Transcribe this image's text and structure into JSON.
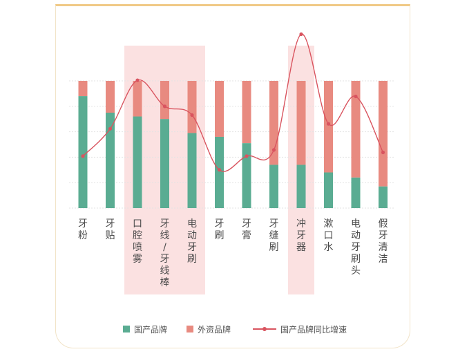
{
  "colors": {
    "domestic": "#5aac92",
    "foreign": "#e88a80",
    "growth": "#d9545f",
    "highlight": "#fbe1e1",
    "grid": "#e3e3e3",
    "label": "#4a4a4a"
  },
  "legend": {
    "domestic": "国产品牌",
    "foreign": "外资品牌",
    "growth": "国产品牌同比增速"
  },
  "chart_data": {
    "type": "bar",
    "stacked": true,
    "percent_stacked": true,
    "categories": [
      "牙粉",
      "牙贴",
      "口腔喷雾",
      "牙线/牙线棒",
      "电动牙刷",
      "牙刷",
      "牙膏",
      "牙缝刷",
      "冲牙器",
      "漱口水",
      "电动牙刷头",
      "假牙清洁"
    ],
    "category_lines": [
      [
        "牙",
        "粉"
      ],
      [
        "牙",
        "贴"
      ],
      [
        "口",
        "腔",
        "喷",
        "雾"
      ],
      [
        "牙",
        "线",
        "/",
        "牙",
        "线",
        "棒"
      ],
      [
        "电",
        "动",
        "牙",
        "刷"
      ],
      [
        "牙",
        "刷"
      ],
      [
        "牙",
        "膏"
      ],
      [
        "牙",
        "缝",
        "刷"
      ],
      [
        "冲",
        "牙",
        "器"
      ],
      [
        "漱",
        "口",
        "水"
      ],
      [
        "电",
        "动",
        "牙",
        "刷",
        "头"
      ],
      [
        "假",
        "牙",
        "清",
        "洁"
      ]
    ],
    "series": [
      {
        "name": "国产品牌",
        "values": [
          88,
          75,
          72,
          70,
          59,
          56,
          51,
          34,
          34,
          28,
          24,
          17
        ]
      },
      {
        "name": "外资品牌",
        "values": [
          12,
          25,
          28,
          30,
          41,
          44,
          49,
          66,
          66,
          72,
          76,
          83
        ]
      }
    ],
    "growth_series": {
      "name": "国产品牌同比增速",
      "values": [
        0.42,
        0.64,
        1.03,
        0.82,
        0.75,
        0.31,
        0.42,
        0.47,
        1.4,
        0.68,
        0.9,
        0.45
      ]
    },
    "highlighted_categories": [
      "口腔喷雾",
      "牙线/牙线棒",
      "电动牙刷",
      "冲牙器"
    ],
    "grid": true,
    "legend_position": "bottom"
  }
}
